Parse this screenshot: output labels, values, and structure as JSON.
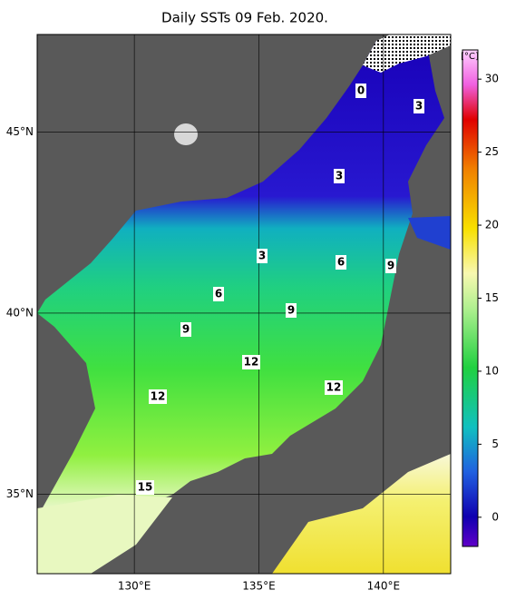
{
  "title": "Daily SSTs 09 Feb. 2020.",
  "map": {
    "xlim": [
      126.1,
      142.7
    ],
    "ylim": [
      32.8,
      47.7
    ],
    "xticks": [
      {
        "value": 130,
        "label": "130°E"
      },
      {
        "value": 135,
        "label": "135°E"
      },
      {
        "value": 140,
        "label": "140°E"
      }
    ],
    "yticks": [
      {
        "value": 35,
        "label": "35°N"
      },
      {
        "value": 40,
        "label": "40°N"
      },
      {
        "value": 45,
        "label": "45°N"
      }
    ],
    "contour_labels": [
      "0",
      "3",
      "3",
      "3",
      "6",
      "9",
      "6",
      "9",
      "9",
      "12",
      "12",
      "12",
      "15"
    ]
  },
  "colorbar": {
    "unit": "[°C]",
    "range": [
      -2,
      32
    ],
    "ticks": [
      0,
      5,
      10,
      15,
      20,
      25,
      30
    ]
  }
}
